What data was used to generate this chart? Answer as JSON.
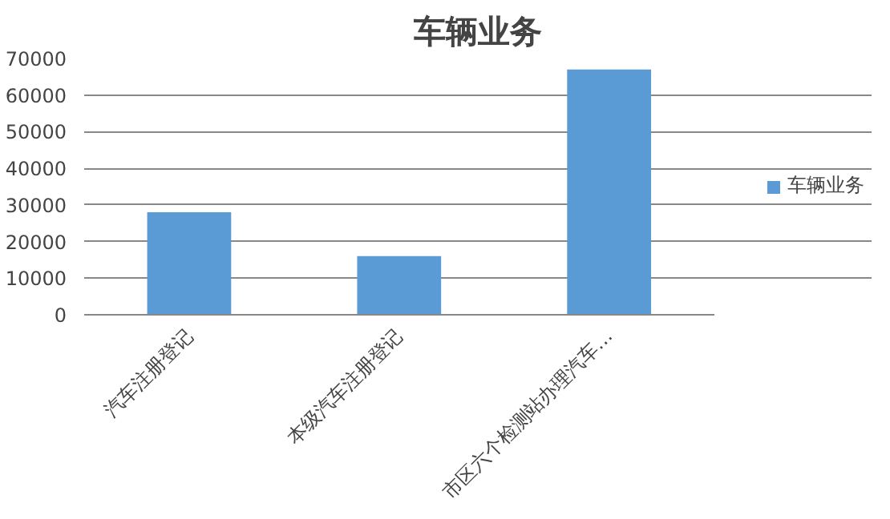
{
  "chart_data": {
    "type": "bar",
    "title": "车辆业务",
    "categories": [
      "汽车注册登记",
      "本级汽车注册登记",
      "市区六个检测站办理汽车…"
    ],
    "series": [
      {
        "name": "车辆业务",
        "color": "#5b9bd5",
        "values": [
          28000,
          16000,
          67000
        ]
      }
    ],
    "ylim": [
      0,
      70000
    ],
    "yticks": [
      0,
      10000,
      20000,
      30000,
      40000,
      50000,
      60000,
      70000
    ],
    "grid": "y",
    "legend": "right"
  }
}
